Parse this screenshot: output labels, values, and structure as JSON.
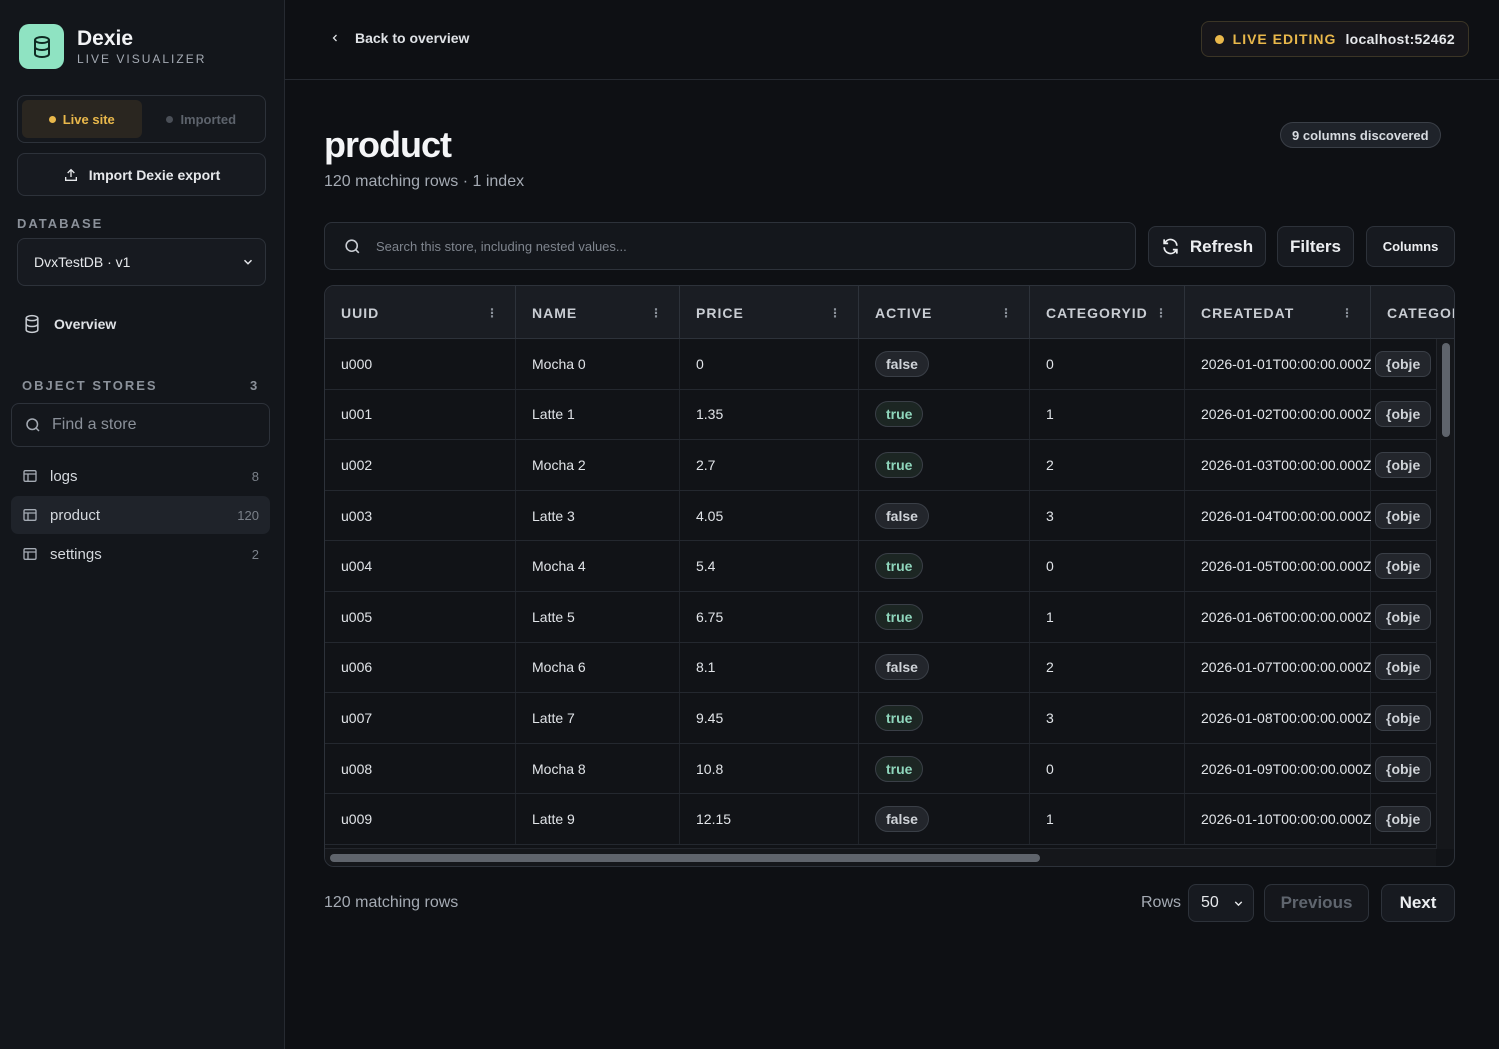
{
  "brand": {
    "title": "Dexie",
    "subtitle": "LIVE VISUALIZER"
  },
  "source_toggle": {
    "live": "Live site",
    "imported": "Imported"
  },
  "import_button": "Import Dexie export",
  "database": {
    "section_label": "DATABASE",
    "selected": "DvxTestDB · v1"
  },
  "nav": {
    "overview": "Overview"
  },
  "object_stores": {
    "section_label": "OBJECT STORES",
    "count": "3",
    "search_placeholder": "Find a store",
    "items": [
      {
        "name": "logs",
        "count": "8"
      },
      {
        "name": "product",
        "count": "120"
      },
      {
        "name": "settings",
        "count": "2"
      }
    ]
  },
  "header": {
    "back": "Back to overview",
    "live_label": "LIVE EDITING",
    "host": "localhost:52462"
  },
  "store": {
    "title": "product",
    "subtitle": "120 matching rows · 1 index",
    "columns_discovered": "9 columns discovered"
  },
  "toolbar": {
    "search_placeholder": "Search this store, including nested values...",
    "refresh": "Refresh",
    "filters": "Filters",
    "columns": "Columns"
  },
  "table": {
    "columns": [
      "UUID",
      "NAME",
      "PRICE",
      "ACTIVE",
      "CATEGORYID",
      "CREATEDAT",
      "CATEGOR"
    ],
    "rows": [
      [
        "u000",
        "Mocha 0",
        "0",
        "false",
        "0",
        "2026-01-01T00:00:00.000Z",
        "{obje"
      ],
      [
        "u001",
        "Latte 1",
        "1.35",
        "true",
        "1",
        "2026-01-02T00:00:00.000Z",
        "{obje"
      ],
      [
        "u002",
        "Mocha 2",
        "2.7",
        "true",
        "2",
        "2026-01-03T00:00:00.000Z",
        "{obje"
      ],
      [
        "u003",
        "Latte 3",
        "4.05",
        "false",
        "3",
        "2026-01-04T00:00:00.000Z",
        "{obje"
      ],
      [
        "u004",
        "Mocha 4",
        "5.4",
        "true",
        "0",
        "2026-01-05T00:00:00.000Z",
        "{obje"
      ],
      [
        "u005",
        "Latte 5",
        "6.75",
        "true",
        "1",
        "2026-01-06T00:00:00.000Z",
        "{obje"
      ],
      [
        "u006",
        "Mocha 6",
        "8.1",
        "false",
        "2",
        "2026-01-07T00:00:00.000Z",
        "{obje"
      ],
      [
        "u007",
        "Latte 7",
        "9.45",
        "true",
        "3",
        "2026-01-08T00:00:00.000Z",
        "{obje"
      ],
      [
        "u008",
        "Mocha 8",
        "10.8",
        "true",
        "0",
        "2026-01-09T00:00:00.000Z",
        "{obje"
      ],
      [
        "u009",
        "Latte 9",
        "12.15",
        "false",
        "1",
        "2026-01-10T00:00:00.000Z",
        "{obje"
      ]
    ]
  },
  "footer": {
    "count": "120 matching rows",
    "rows_label": "Rows",
    "rows_value": "50",
    "previous": "Previous",
    "next": "Next"
  },
  "colors": {
    "accent": "#8fe3c2",
    "live": "#e9b84b",
    "true_text": "#8fd6bc"
  }
}
